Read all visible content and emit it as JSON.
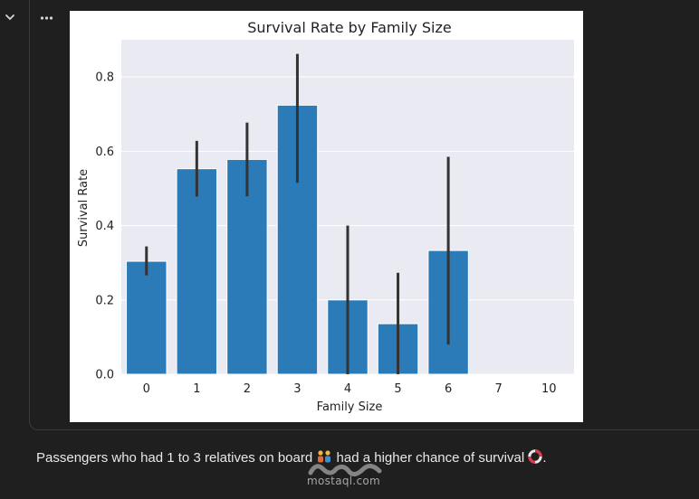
{
  "controls": {
    "collapse_icon": "chevron-down-icon",
    "more_icon": "more-horizontal-icon"
  },
  "chart_data": {
    "type": "bar",
    "title": "Survival Rate by Family Size",
    "xlabel": "Family Size",
    "ylabel": "Survival Rate",
    "categories": [
      "0",
      "1",
      "2",
      "3",
      "4",
      "5",
      "6",
      "7",
      "10"
    ],
    "values": [
      0.304,
      0.553,
      0.578,
      0.724,
      0.2,
      0.136,
      0.333,
      0,
      0
    ],
    "error_low": [
      0.266,
      0.478,
      0.479,
      0.515,
      0.0,
      0.0,
      0.08,
      null,
      null
    ],
    "error_high": [
      0.344,
      0.628,
      0.677,
      0.862,
      0.4,
      0.273,
      0.585,
      null,
      null
    ],
    "ylim": [
      0,
      0.9
    ],
    "yticks": [
      0.0,
      0.2,
      0.4,
      0.6,
      0.8
    ],
    "ytick_labels": [
      "0.0",
      "0.2",
      "0.4",
      "0.6",
      "0.8"
    ],
    "grid": true,
    "colors": {
      "bar": "#2b7bb9",
      "error": "#333333",
      "plot_bg": "#eaeaf2",
      "grid": "#ffffff"
    }
  },
  "caption": {
    "before": "Passengers who had 1 to 3 relatives on board ",
    "middle": " had a higher chance of survival ",
    "after": "."
  },
  "watermark": {
    "text": "mostaql.com",
    "brand": "مستقل"
  }
}
